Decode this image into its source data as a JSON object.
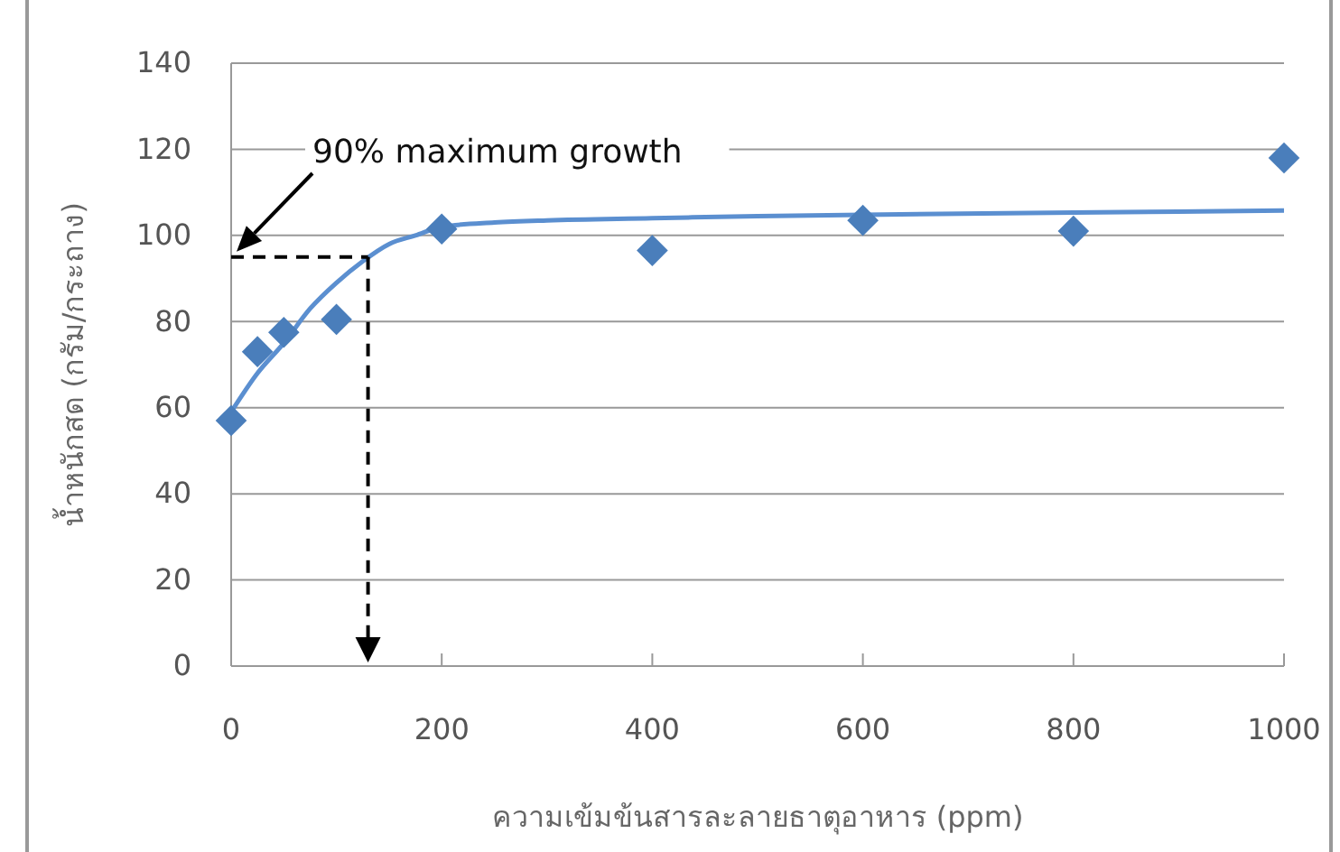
{
  "chart_data": {
    "type": "scatter",
    "xlabel": "ความเข้มข้นสารละลายธาตุอาหาร (ppm)",
    "ylabel": "น้ำหนักสด (กรัม/กระถาง)",
    "xlim": [
      0,
      1000
    ],
    "xticks": [
      0,
      200,
      400,
      600,
      800,
      1000
    ],
    "ylim": [
      0,
      140
    ],
    "yticks": [
      0,
      20,
      40,
      60,
      80,
      100,
      120,
      140
    ],
    "grid": "y",
    "annotations": [
      "90% maximum growth"
    ],
    "ref_lines": [
      {
        "axis": "y",
        "value": 95,
        "color": "#000000",
        "line_style": "dashed"
      },
      {
        "axis": "x",
        "value": 130,
        "color": "#000000",
        "line_style": "dashed"
      }
    ],
    "series": [
      {
        "type": "line",
        "color": "#5b8fd0",
        "marker": "none",
        "line_style": "solid",
        "x": [
          0,
          25,
          50,
          75,
          100,
          125,
          150,
          175,
          200,
          250,
          300,
          400,
          500,
          600,
          800,
          1000
        ],
        "values": [
          59,
          68,
          75,
          83,
          89,
          94,
          98,
          100,
          102,
          103,
          103.5,
          104,
          104.5,
          104.8,
          105.3,
          105.8
        ]
      },
      {
        "color": "#4a7ebb",
        "marker": "diamond",
        "x": [
          0,
          25,
          50,
          100,
          200,
          400,
          600,
          800,
          1000
        ],
        "values": [
          57,
          73,
          77.5,
          80.5,
          101.5,
          96.5,
          103.5,
          101,
          118
        ]
      }
    ]
  }
}
